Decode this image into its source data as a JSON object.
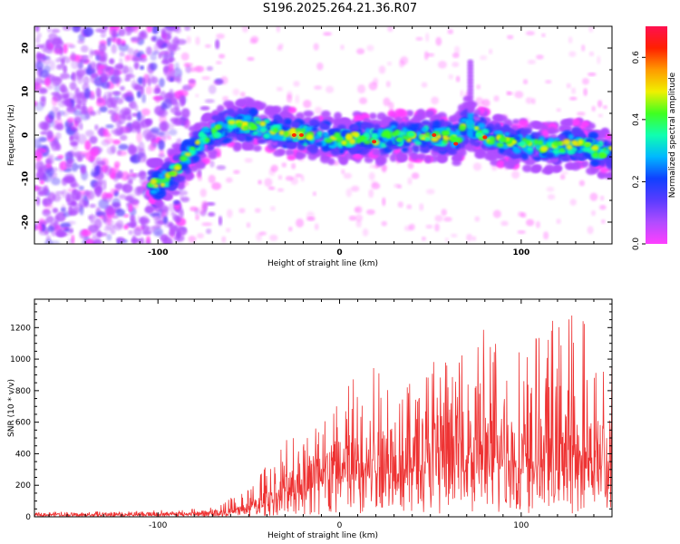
{
  "title": "S196.2025.264.21.36.R07",
  "chart_data": [
    {
      "type": "heatmap",
      "title": "S196.2025.264.21.36.R07",
      "xlabel": "Height of straight line (km)",
      "ylabel": "Frequency (Hz)",
      "xlim": [
        -168,
        150
      ],
      "ylim": [
        -25,
        25
      ],
      "xticks": [
        -100,
        0,
        100
      ],
      "xtick_labels": [
        "-100",
        "0",
        "100"
      ],
      "yticks": [
        -20,
        -10,
        0,
        10,
        20
      ],
      "ytick_labels": [
        "-20",
        "-10",
        "0",
        "10",
        "20"
      ],
      "grid": false,
      "colorbar": {
        "label": "Normalized spectral amplitude",
        "range": [
          0,
          0.7
        ],
        "ticks": [
          0.0,
          0.2,
          0.4,
          0.6
        ],
        "tick_labels": [
          "0.0",
          "0.2",
          "0.4",
          "0.6"
        ],
        "colors": [
          "#ff3fff",
          "#b04cff",
          "#5a3cff",
          "#1040ff",
          "#00b8ff",
          "#10ffb0",
          "#40ff20",
          "#f0f000",
          "#ff9a00",
          "#ff2000",
          "#ff1050"
        ]
      },
      "ridge": {
        "height_km": [
          -105,
          -95,
          -88,
          -80,
          -72,
          -62,
          -50,
          -40,
          -30,
          -20,
          -10,
          0,
          10,
          20,
          30,
          40,
          50,
          60,
          65,
          70,
          75,
          85,
          100,
          115,
          130,
          145
        ],
        "frequency_hz": [
          -12,
          -10,
          -7,
          -3,
          0,
          2,
          2.5,
          1.5,
          0.5,
          0,
          -0.5,
          -1,
          -0.5,
          -1,
          0,
          -0.5,
          0,
          -0.5,
          -1,
          3,
          1,
          -1,
          -2,
          -3,
          -2,
          -4
        ]
      },
      "noise_region_km": [
        -168,
        -85
      ],
      "spike": {
        "height_km": 72,
        "frequency_hz": [
          0,
          17
        ]
      }
    },
    {
      "type": "line",
      "xlabel": "Height of straight line (km)",
      "ylabel": "SNR (10 * v/v)",
      "xlim": [
        -168,
        150
      ],
      "ylim": [
        0,
        1380
      ],
      "xticks": [
        -100,
        0,
        100
      ],
      "xtick_labels": [
        "-100",
        "0",
        "100"
      ],
      "yticks": [
        0,
        200,
        400,
        600,
        800,
        1000,
        1200
      ],
      "ytick_labels": [
        "0",
        "200",
        "400",
        "600",
        "800",
        "1000",
        "1200"
      ],
      "grid": false,
      "series": [
        {
          "name": "SNR",
          "color": "#ee3333",
          "envelope_x": [
            -168,
            -120,
            -90,
            -75,
            -60,
            -50,
            -40,
            -30,
            -20,
            -10,
            0,
            10,
            20,
            30,
            40,
            50,
            60,
            70,
            80,
            90,
            100,
            110,
            120,
            130,
            140,
            150
          ],
          "envelope_baseline": [
            15,
            15,
            18,
            22,
            35,
            60,
            110,
            180,
            240,
            290,
            330,
            360,
            380,
            400,
            420,
            440,
            430,
            450,
            460,
            450,
            440,
            450,
            440,
            430,
            420,
            420
          ],
          "envelope_peak": [
            30,
            35,
            45,
            65,
            120,
            200,
            330,
            480,
            620,
            780,
            860,
            950,
            980,
            1010,
            960,
            1050,
            980,
            1100,
            1240,
            1080,
            1050,
            1230,
            1280,
            1300,
            1350,
            1100
          ]
        }
      ]
    }
  ]
}
